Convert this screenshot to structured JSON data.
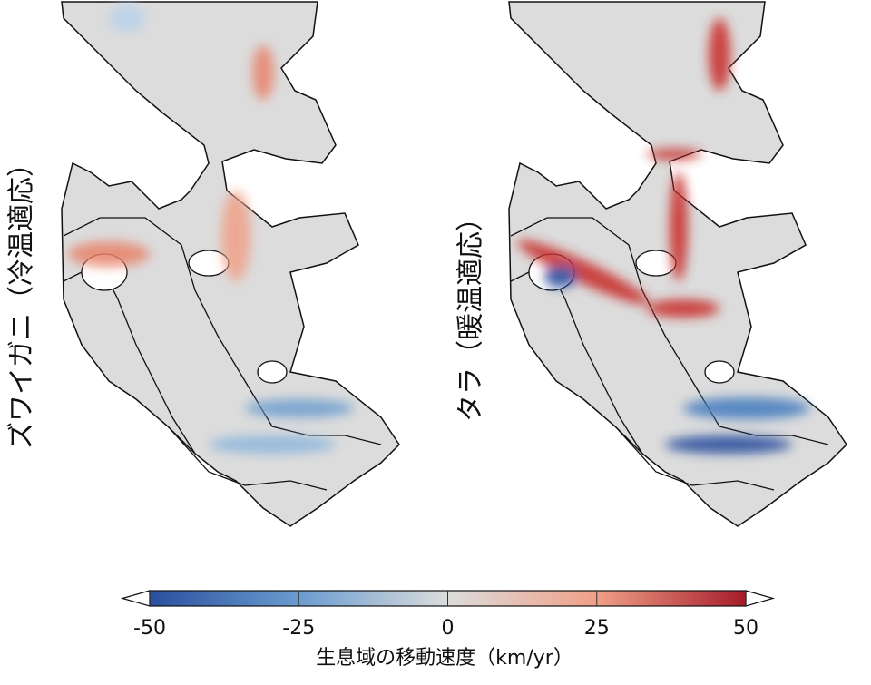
{
  "chart_data": {
    "type": "colorbar",
    "panels": [
      "ズワイガニ（冷温適応）",
      "タラ（暖温適応）"
    ],
    "label": "生息域の移動速度（km/yr）",
    "xlim": [
      -50,
      50
    ],
    "xticks": [
      -50,
      -25,
      0,
      25,
      50
    ],
    "colors": [
      "#2a4f9e",
      "#6a9ccf",
      "#dcdcdc",
      "#f0a088",
      "#a51c2a"
    ]
  }
}
